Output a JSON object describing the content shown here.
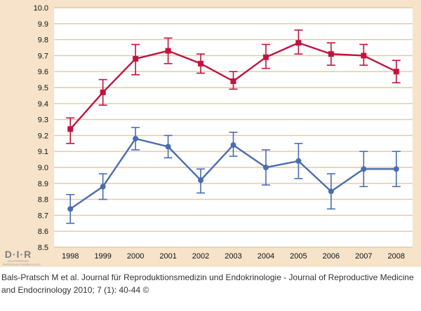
{
  "chart_data": {
    "type": "line",
    "title": "",
    "xlabel": "",
    "ylabel": "",
    "x": [
      "1998",
      "1999",
      "2000",
      "2001",
      "2002",
      "2003",
      "2004",
      "2005",
      "2006",
      "2007",
      "2008"
    ],
    "ylim": [
      8.5,
      10.0
    ],
    "yticks": [
      "8.5",
      "8.6",
      "8.7",
      "8.8",
      "8.9",
      "9.0",
      "9.1",
      "9.2",
      "9.3",
      "9.4",
      "9.5",
      "9.6",
      "9.7",
      "9.8",
      "9.9",
      "10.0"
    ],
    "grid": true,
    "legend": "none",
    "series": [
      {
        "color": "#c0143c",
        "marker": "square",
        "values": [
          9.24,
          9.47,
          9.68,
          9.73,
          9.65,
          9.54,
          9.69,
          9.78,
          9.71,
          9.7,
          9.6
        ],
        "err_low": [
          9.15,
          9.39,
          9.58,
          9.65,
          9.59,
          9.49,
          9.62,
          9.71,
          9.64,
          9.64,
          9.53
        ],
        "err_high": [
          9.31,
          9.55,
          9.77,
          9.81,
          9.71,
          9.6,
          9.77,
          9.86,
          9.78,
          9.77,
          9.67
        ]
      },
      {
        "color": "#4a6db0",
        "marker": "circle",
        "values": [
          8.74,
          8.88,
          9.18,
          9.13,
          8.92,
          9.14,
          9.0,
          9.04,
          8.85,
          8.99,
          8.99
        ],
        "err_low": [
          8.65,
          8.8,
          9.11,
          9.06,
          8.84,
          9.07,
          8.89,
          8.93,
          8.74,
          8.88,
          8.88
        ],
        "err_high": [
          8.83,
          8.96,
          9.25,
          9.2,
          8.99,
          9.22,
          9.11,
          9.15,
          8.96,
          9.1,
          9.1
        ]
      }
    ]
  },
  "logo": {
    "text": "D·I·R",
    "sub": "DACHVERBAND REPRODUKTIONSBIOLOGIE"
  },
  "caption": {
    "line1": "Bals-Pratsch M et al. Journal für Reproduktionsmedizin und Endokrinologie - Journal of Reproductive Medicine",
    "line2": "and Endocrinology 2010; 7 (1): 40-44 ©"
  },
  "colors": {
    "frame": "#f6e3c9",
    "plot_bg": "#ffffff",
    "grid": "#e3c7a3"
  }
}
